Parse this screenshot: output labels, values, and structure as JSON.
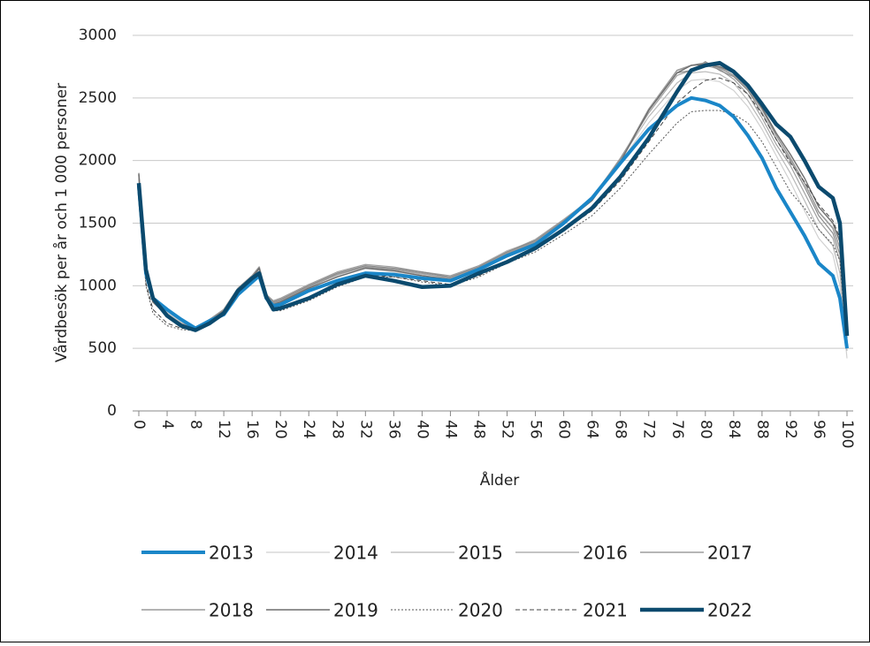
{
  "chart_data": {
    "type": "line",
    "ylabel": "Vårdbesök per år och 1 000 personer",
    "xlabel": "Ålder",
    "x": [
      0,
      1,
      2,
      4,
      6,
      8,
      10,
      12,
      14,
      16,
      17,
      18,
      19,
      20,
      24,
      28,
      32,
      36,
      40,
      44,
      48,
      52,
      56,
      60,
      64,
      68,
      72,
      76,
      78,
      80,
      82,
      84,
      86,
      88,
      90,
      92,
      94,
      96,
      98,
      99,
      100
    ],
    "xlim": [
      0,
      100
    ],
    "xticks": [
      0,
      4,
      8,
      12,
      16,
      20,
      24,
      28,
      32,
      36,
      40,
      44,
      48,
      52,
      56,
      60,
      64,
      68,
      72,
      76,
      80,
      84,
      88,
      92,
      96,
      100
    ],
    "ylim": [
      0,
      3000
    ],
    "yticks": [
      0,
      500,
      1000,
      1500,
      2000,
      2500,
      3000
    ],
    "grid": true,
    "series": [
      {
        "name": "2013",
        "color": "#1a86c8",
        "width": 4,
        "dash": "solid",
        "values": [
          1800,
          1100,
          900,
          810,
          730,
          660,
          720,
          770,
          930,
          1030,
          1080,
          900,
          840,
          850,
          960,
          1040,
          1100,
          1090,
          1060,
          1040,
          1130,
          1240,
          1330,
          1500,
          1700,
          1980,
          2250,
          2440,
          2500,
          2480,
          2440,
          2350,
          2200,
          2020,
          1780,
          1590,
          1400,
          1180,
          1080,
          900,
          500
        ]
      },
      {
        "name": "2014",
        "color": "#d0d0d0",
        "width": 1.2,
        "dash": "solid",
        "values": [
          1850,
          1100,
          900,
          790,
          710,
          660,
          720,
          790,
          950,
          1050,
          1100,
          920,
          870,
          880,
          1000,
          1080,
          1140,
          1110,
          1080,
          1060,
          1150,
          1270,
          1350,
          1510,
          1700,
          1990,
          2300,
          2560,
          2640,
          2650,
          2630,
          2560,
          2430,
          2250,
          2040,
          1830,
          1600,
          1380,
          1250,
          1000,
          420
        ]
      },
      {
        "name": "2015",
        "color": "#b8b8b8",
        "width": 1.2,
        "dash": "solid",
        "values": [
          1870,
          1100,
          890,
          780,
          700,
          670,
          730,
          800,
          960,
          1060,
          1110,
          920,
          880,
          900,
          1010,
          1100,
          1160,
          1130,
          1090,
          1070,
          1160,
          1280,
          1360,
          1520,
          1710,
          2010,
          2350,
          2620,
          2700,
          2710,
          2690,
          2620,
          2480,
          2300,
          2090,
          1900,
          1680,
          1450,
          1320,
          1100,
          480
        ]
      },
      {
        "name": "2016",
        "color": "#a0a0a0",
        "width": 1.2,
        "dash": "solid",
        "values": [
          1880,
          1090,
          880,
          770,
          700,
          670,
          730,
          800,
          970,
          1070,
          1130,
          930,
          880,
          900,
          1010,
          1110,
          1170,
          1150,
          1110,
          1080,
          1160,
          1270,
          1370,
          1530,
          1700,
          2020,
          2380,
          2680,
          2720,
          2760,
          2730,
          2650,
          2530,
          2340,
          2130,
          1960,
          1740,
          1520,
          1380,
          1200,
          500
        ]
      },
      {
        "name": "2017",
        "color": "#8a8a8a",
        "width": 1.2,
        "dash": "solid",
        "values": [
          1900,
          1090,
          880,
          770,
          690,
          670,
          730,
          810,
          980,
          1080,
          1140,
          930,
          870,
          890,
          1000,
          1100,
          1160,
          1140,
          1110,
          1070,
          1150,
          1270,
          1360,
          1520,
          1700,
          2010,
          2400,
          2700,
          2720,
          2790,
          2720,
          2670,
          2560,
          2380,
          2170,
          2000,
          1790,
          1560,
          1420,
          1250,
          520
        ]
      },
      {
        "name": "2018",
        "color": "#9a9a9a",
        "width": 1.6,
        "dash": "solid",
        "values": [
          1900,
          1080,
          870,
          760,
          690,
          660,
          730,
          810,
          980,
          1080,
          1150,
          930,
          860,
          880,
          990,
          1090,
          1150,
          1130,
          1100,
          1060,
          1140,
          1260,
          1350,
          1510,
          1690,
          2000,
          2410,
          2720,
          2760,
          2780,
          2740,
          2680,
          2570,
          2410,
          2200,
          2020,
          1820,
          1590,
          1460,
          1300,
          540
        ]
      },
      {
        "name": "2019",
        "color": "#6e6e6e",
        "width": 1.4,
        "dash": "solid",
        "values": [
          1890,
          1070,
          870,
          760,
          680,
          650,
          720,
          800,
          970,
          1070,
          1140,
          920,
          850,
          870,
          980,
          1070,
          1140,
          1120,
          1080,
          1050,
          1130,
          1250,
          1340,
          1500,
          1680,
          1990,
          2400,
          2700,
          2760,
          2770,
          2750,
          2700,
          2590,
          2420,
          2220,
          2050,
          1860,
          1630,
          1500,
          1350,
          560
        ]
      },
      {
        "name": "2020",
        "color": "#555555",
        "width": 1,
        "dash": "dotted",
        "values": [
          1750,
          1000,
          780,
          680,
          650,
          640,
          690,
          770,
          930,
          1030,
          1080,
          890,
          800,
          800,
          880,
          990,
          1070,
          1070,
          1030,
          1000,
          1070,
          1180,
          1270,
          1410,
          1560,
          1780,
          2050,
          2300,
          2390,
          2400,
          2400,
          2370,
          2300,
          2150,
          1950,
          1750,
          1620,
          1450,
          1330,
          1200,
          500
        ]
      },
      {
        "name": "2021",
        "color": "#444444",
        "width": 1,
        "dash": "dashed",
        "values": [
          1760,
          1020,
          810,
          700,
          660,
          650,
          700,
          780,
          950,
          1050,
          1100,
          900,
          810,
          820,
          900,
          1010,
          1090,
          1070,
          1040,
          1010,
          1080,
          1190,
          1290,
          1440,
          1600,
          1840,
          2150,
          2460,
          2560,
          2640,
          2660,
          2620,
          2530,
          2370,
          2170,
          1980,
          1830,
          1650,
          1520,
          1380,
          550
        ]
      },
      {
        "name": "2022",
        "color": "#0b4a6e",
        "width": 4.5,
        "dash": "solid",
        "values": [
          1820,
          1130,
          900,
          760,
          680,
          645,
          700,
          780,
          960,
          1060,
          1100,
          910,
          810,
          820,
          900,
          1010,
          1080,
          1040,
          990,
          1000,
          1100,
          1190,
          1300,
          1450,
          1620,
          1870,
          2180,
          2550,
          2720,
          2760,
          2780,
          2710,
          2600,
          2450,
          2290,
          2190,
          2000,
          1790,
          1700,
          1500,
          600
        ]
      }
    ]
  }
}
